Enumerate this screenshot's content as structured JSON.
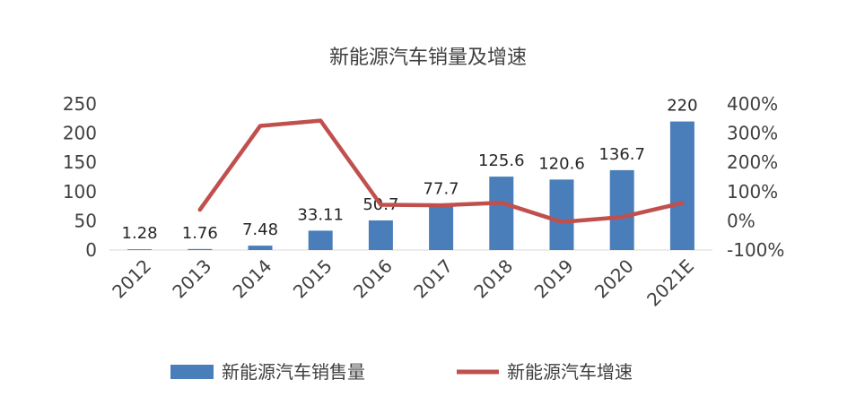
{
  "chart_data": {
    "type": "bar+line",
    "title": "新能源汽车销量及增速",
    "categories": [
      "2012",
      "2013",
      "2014",
      "2015",
      "2016",
      "2017",
      "2018",
      "2019",
      "2020",
      "2021E"
    ],
    "series": [
      {
        "name": "新能源汽车销售量",
        "type": "bar",
        "axis": "left",
        "values": [
          1.28,
          1.76,
          7.48,
          33.11,
          50.7,
          77.7,
          125.6,
          120.6,
          136.7,
          220
        ],
        "labels": [
          "1.28",
          "1.76",
          "7.48",
          "33.11",
          "50.7",
          "77.7",
          "125.6",
          "120.6",
          "136.7",
          "220"
        ]
      },
      {
        "name": "新能源汽车增速",
        "type": "line",
        "axis": "right",
        "values": [
          null,
          38,
          325,
          343,
          55,
          53,
          62,
          -4,
          13,
          61
        ]
      }
    ],
    "yleft": {
      "ylim": [
        0,
        250
      ],
      "ticks": [
        "0",
        "50",
        "100",
        "150",
        "200",
        "250"
      ]
    },
    "yright": {
      "ylim": [
        -100,
        400
      ],
      "ticks": [
        "-100%",
        "0%",
        "100%",
        "200%",
        "300%",
        "400%"
      ]
    },
    "grid": false,
    "legend_position": "bottom",
    "colors": {
      "bar": "#4a7ebb",
      "line": "#c0504d"
    }
  }
}
